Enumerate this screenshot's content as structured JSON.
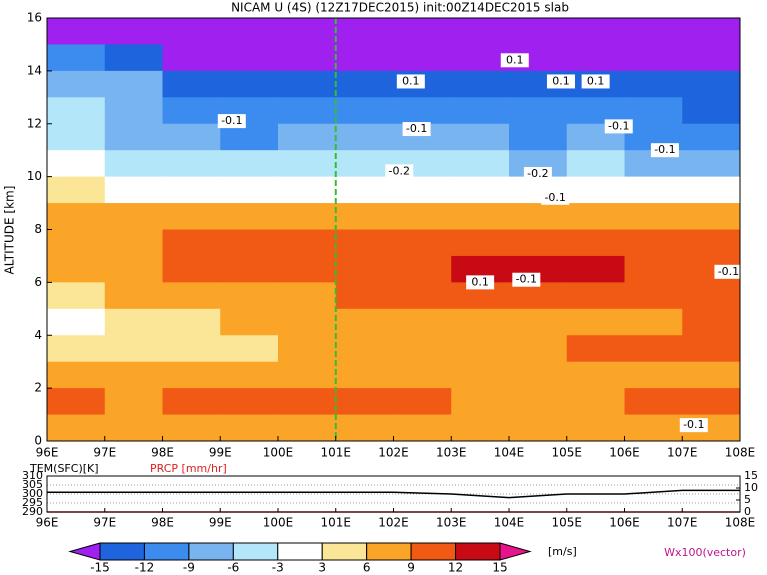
{
  "chart_data": [
    {
      "type": "heatmap",
      "title": "NICAM U (4S) (12Z17DEC2015) init:00Z14DEC2015 slab",
      "y_label": "ALTITUDE [km]",
      "x": [
        96.5,
        97.5,
        98.5,
        99.5,
        100.5,
        101.5,
        102.5,
        103.5,
        104.5,
        105.5,
        106.5,
        107.5
      ],
      "y": [
        15.5,
        14.5,
        13.5,
        12.5,
        11.5,
        10.5,
        9.5,
        8.5,
        7.5,
        6.5,
        5.5,
        4.5,
        3.5,
        2.5,
        1.5,
        0.5
      ],
      "values": [
        [
          -17,
          -18,
          -18,
          -18,
          -18,
          -18,
          -18,
          -18,
          -18,
          -18,
          -17,
          -17
        ],
        [
          -10,
          -13,
          -16,
          -17,
          -17,
          -17,
          -16,
          -16,
          -16,
          -16,
          -16,
          -16
        ],
        [
          -6,
          -8,
          -12,
          -13,
          -14,
          -13,
          -12,
          -13,
          -13,
          -12,
          -13,
          -14
        ],
        [
          -5,
          -7,
          -10,
          -11,
          -11,
          -10,
          -10,
          -10,
          -11,
          -10,
          -11,
          -12
        ],
        [
          -4,
          -6,
          -8,
          -9,
          -8,
          -7,
          -8,
          -8,
          -9,
          -8,
          -9,
          -10
        ],
        [
          -2,
          -4,
          -5,
          -5,
          -4,
          -4,
          -5,
          -5,
          -6,
          -5,
          -6,
          -7
        ],
        [
          4,
          2,
          1,
          1,
          1,
          2,
          2,
          1,
          1,
          0,
          -1,
          -2
        ],
        [
          7,
          7,
          8,
          8,
          8,
          8,
          7,
          7,
          7,
          7,
          8,
          7
        ],
        [
          7,
          8,
          10,
          11,
          11,
          11,
          11,
          12,
          12,
          11,
          11,
          10
        ],
        [
          8,
          8,
          10,
          10,
          11,
          11,
          12,
          13,
          13,
          13,
          12,
          11
        ],
        [
          5,
          7,
          8,
          9,
          9,
          10,
          11,
          11,
          12,
          11,
          11,
          10
        ],
        [
          2,
          5,
          6,
          7,
          7,
          7,
          8,
          7,
          8,
          8,
          7,
          10
        ],
        [
          4,
          5,
          6,
          6,
          7,
          7,
          7,
          8,
          9,
          11,
          10,
          10
        ],
        [
          7,
          8,
          7,
          8,
          8,
          8,
          8,
          8,
          9,
          8,
          8,
          8
        ],
        [
          10,
          9,
          10,
          10,
          10,
          10,
          10,
          9,
          9,
          9,
          10,
          11
        ],
        [
          7,
          8,
          8,
          8,
          7,
          8,
          8,
          8,
          7,
          7,
          8,
          9
        ]
      ],
      "xlim": [
        96,
        108
      ],
      "ylim": [
        0,
        16
      ],
      "xticks": [
        {
          "value": 96,
          "label": "96E"
        },
        {
          "value": 97,
          "label": "97E"
        },
        {
          "value": 98,
          "label": "98E"
        },
        {
          "value": 99,
          "label": "99E"
        },
        {
          "value": 100,
          "label": "100E"
        },
        {
          "value": 101,
          "label": "101E"
        },
        {
          "value": 102,
          "label": "102E"
        },
        {
          "value": 103,
          "label": "103E"
        },
        {
          "value": 104,
          "label": "104E"
        },
        {
          "value": 105,
          "label": "105E"
        },
        {
          "value": 106,
          "label": "106E"
        },
        {
          "value": 107,
          "label": "107E"
        },
        {
          "value": 108,
          "label": "108E"
        }
      ],
      "yticks": [
        0,
        2,
        4,
        6,
        8,
        10,
        12,
        14,
        16
      ],
      "marker_x": 101,
      "annotations": [
        {
          "text": "0.1",
          "x": 104.1,
          "y": 14.4
        },
        {
          "text": "0.1",
          "x": 102.3,
          "y": 13.6
        },
        {
          "text": "0.1",
          "x": 104.9,
          "y": 13.6
        },
        {
          "text": "0.1",
          "x": 105.5,
          "y": 13.6
        },
        {
          "text": "-0.1",
          "x": 99.2,
          "y": 12.1
        },
        {
          "text": "-0.1",
          "x": 102.4,
          "y": 11.8
        },
        {
          "text": "-0.1",
          "x": 105.9,
          "y": 11.9
        },
        {
          "text": "-0.1",
          "x": 106.7,
          "y": 11.0
        },
        {
          "text": "-0.2",
          "x": 102.1,
          "y": 10.2
        },
        {
          "text": "-0.2",
          "x": 104.5,
          "y": 10.1
        },
        {
          "text": "-0.1",
          "x": 104.8,
          "y": 9.2
        },
        {
          "text": "0.1",
          "x": 103.5,
          "y": 6.0
        },
        {
          "text": "-0.1",
          "x": 104.3,
          "y": 6.1
        },
        {
          "text": "-0.1",
          "x": 107.8,
          "y": 6.4
        },
        {
          "text": "-0.1",
          "x": 107.2,
          "y": 0.6
        }
      ],
      "colorbar": {
        "levels": [
          -15,
          -12,
          -9,
          -6,
          -3,
          3,
          6,
          9,
          12,
          15
        ],
        "colors": [
          "#a020f0",
          "#1e64dc",
          "#3c8cf0",
          "#78b4f0",
          "#b4e6fa",
          "#ffffff",
          "#fae696",
          "#faa528",
          "#f05a14",
          "#c80a14",
          "#e6148c"
        ],
        "unit": "[m/s]"
      },
      "vector_label": "Wx100(vector)"
    },
    {
      "type": "line",
      "x": [
        96,
        97,
        98,
        99,
        100,
        101,
        102,
        103,
        104,
        105,
        106,
        107,
        108
      ],
      "series": [
        {
          "name": "TEM(SFC)[K]",
          "color": "#000000",
          "values": [
            301,
            301,
            301,
            301,
            301,
            301,
            301,
            300,
            298,
            300,
            300,
            302,
            302
          ]
        },
        {
          "name": "PRCP [mm/hr]",
          "color": "#e02020",
          "axis": "y2",
          "values": [
            0,
            0,
            0,
            0,
            0,
            0,
            0,
            0,
            0,
            0,
            0,
            0,
            0
          ]
        }
      ],
      "xlim": [
        96,
        108
      ],
      "ylim": [
        290,
        310
      ],
      "yticks": [
        290,
        295,
        300,
        305,
        310
      ],
      "y2lim": [
        0,
        15
      ],
      "y2ticks": [
        0,
        5,
        10,
        15
      ],
      "grid": true,
      "xticks": [
        {
          "value": 96,
          "label": "96E"
        },
        {
          "value": 97,
          "label": "97E"
        },
        {
          "value": 98,
          "label": "98E"
        },
        {
          "value": 99,
          "label": "99E"
        },
        {
          "value": 100,
          "label": "100E"
        },
        {
          "value": 101,
          "label": "101E"
        },
        {
          "value": 102,
          "label": "102E"
        },
        {
          "value": 103,
          "label": "103E"
        },
        {
          "value": 104,
          "label": "104E"
        },
        {
          "value": 105,
          "label": "105E"
        },
        {
          "value": 106,
          "label": "106E"
        },
        {
          "value": 107,
          "label": "107E"
        },
        {
          "value": 108,
          "label": "108E"
        }
      ]
    }
  ]
}
